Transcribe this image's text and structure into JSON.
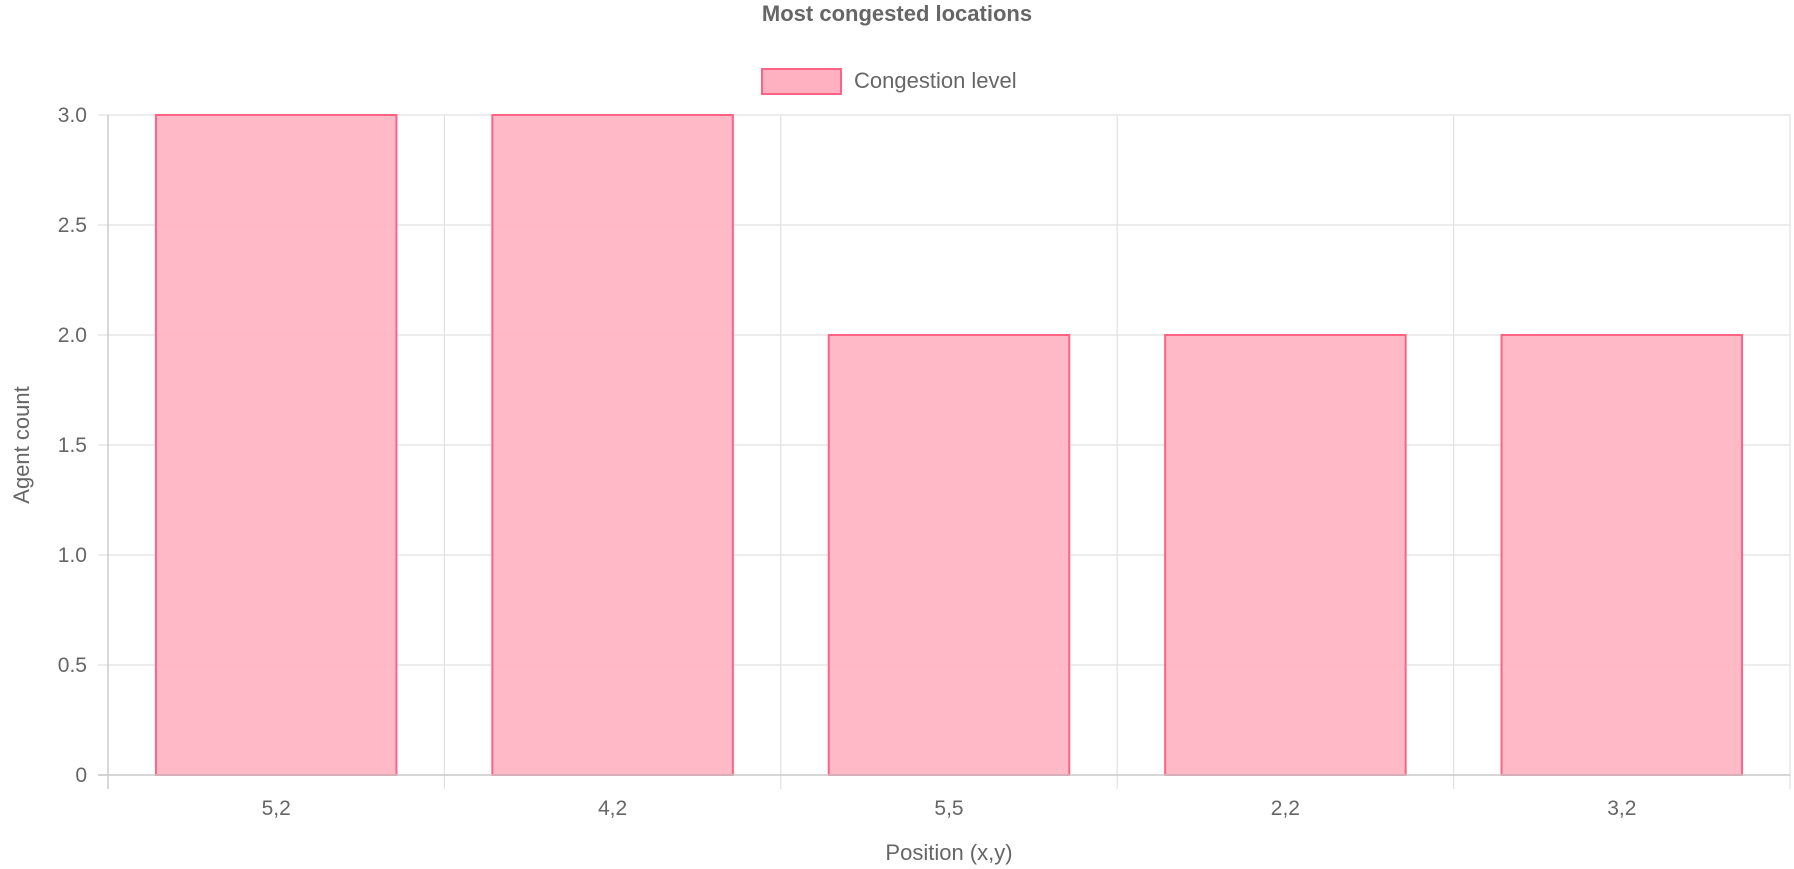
{
  "chart_data": {
    "type": "bar",
    "title": "Most congested locations",
    "categories": [
      "5,2",
      "4,2",
      "5,5",
      "2,2",
      "3,2"
    ],
    "series": [
      {
        "name": "Congestion level",
        "values": [
          3,
          3,
          2,
          2,
          2
        ],
        "fill": "#ffb1c1",
        "border": "#ff6384"
      }
    ],
    "xlabel": "Position (x,y)",
    "ylabel": "Agent count",
    "ylim": [
      0,
      3
    ],
    "yticks": [
      "0",
      "0.5",
      "1.0",
      "1.5",
      "2.0",
      "2.5",
      "3.0"
    ],
    "grid": true,
    "legend_position": "top"
  }
}
